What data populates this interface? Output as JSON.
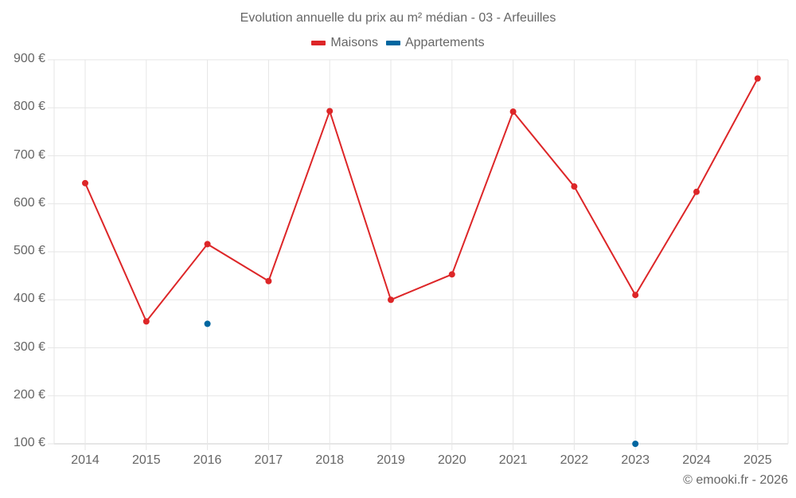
{
  "title": "Evolution annuelle du prix au m² médian - 03 - Arfeuilles",
  "legend": [
    {
      "label": "Maisons",
      "color": "#dd2628"
    },
    {
      "label": "Appartements",
      "color": "#0066a0"
    }
  ],
  "credits": "© emooki.fr - 2026",
  "y_ticks": [
    "900 €",
    "800 €",
    "700 €",
    "600 €",
    "500 €",
    "400 €",
    "300 €",
    "200 €",
    "100 €"
  ],
  "x_ticks": [
    "2014",
    "2015",
    "2016",
    "2017",
    "2018",
    "2019",
    "2020",
    "2021",
    "2022",
    "2023",
    "2024",
    "2025"
  ],
  "chart_data": {
    "type": "line",
    "title": "Evolution annuelle du prix au m² médian - 03 - Arfeuilles",
    "xlabel": "",
    "ylabel": "",
    "x": [
      2014,
      2015,
      2016,
      2017,
      2018,
      2019,
      2020,
      2021,
      2022,
      2023,
      2024,
      2025
    ],
    "series": [
      {
        "name": "Maisons",
        "color": "#dd2628",
        "values": [
          643,
          355,
          516,
          439,
          793,
          400,
          453,
          792,
          636,
          410,
          625,
          861
        ]
      },
      {
        "name": "Appartements",
        "color": "#0066a0",
        "values": [
          null,
          null,
          350,
          null,
          null,
          null,
          null,
          null,
          null,
          100,
          null,
          null
        ]
      }
    ],
    "ylim": [
      100,
      900
    ],
    "y_unit": "€",
    "grid": true,
    "legend_position": "top"
  }
}
